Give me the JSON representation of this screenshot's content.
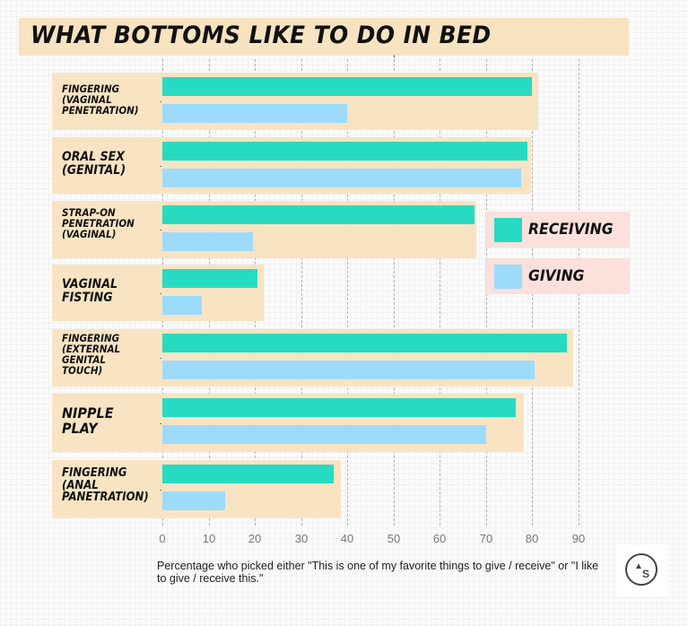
{
  "title": "WHAT BOTTOMS LIKE TO DO IN BED",
  "caption": "Percentage who picked either \"This is one of my favorite things to give / receive\" or \"I like to give / receive this.\"",
  "legend": {
    "receiving": {
      "label": "RECEIVING",
      "color": "#27dbc2"
    },
    "giving": {
      "label": "GIVING",
      "color": "#9ddbfc"
    }
  },
  "logo": {
    "icon": "as-circle-logo",
    "tri": "▲",
    "s": "S"
  },
  "colors": {
    "receiving": "#27dbc2",
    "giving": "#9ddbfc",
    "row_background": "#f8e3c0",
    "legend_background": "#fbe0db"
  },
  "chart_data": {
    "type": "bar",
    "orientation": "horizontal",
    "title": "WHAT BOTTOMS LIKE TO DO IN BED",
    "xlabel": "Percentage who picked either \"This is one of my favorite things to give / receive\" or \"I like to give / receive this.\"",
    "ylabel": "",
    "xlim": [
      0,
      90
    ],
    "xticks": [
      0,
      10,
      20,
      30,
      40,
      50,
      60,
      70,
      80,
      90
    ],
    "grid": "vertical dashed",
    "legend_position": "right, middle",
    "categories": [
      "FINGERING\n(VAGINAL\nPENETRATION)",
      "ORAL SEX\n(GENITAL)",
      "STRAP-ON\nPENETRATION\n(VAGINAL)",
      "VAGINAL\nFISTING",
      "FINGERING\n(EXTERNAL\nGENITAL\nTOUCH)",
      "NIPPLE\nPLAY",
      "FINGERING\n(ANAL\nPANETRATION)"
    ],
    "series": [
      {
        "name": "RECEIVING",
        "color": "#27dbc2",
        "values": [
          80,
          79,
          67.5,
          20.5,
          87.5,
          76.5,
          37
        ]
      },
      {
        "name": "GIVING",
        "color": "#9ddbfc",
        "values": [
          40,
          77.5,
          19.5,
          8.5,
          80.5,
          70,
          13.5
        ]
      }
    ]
  }
}
